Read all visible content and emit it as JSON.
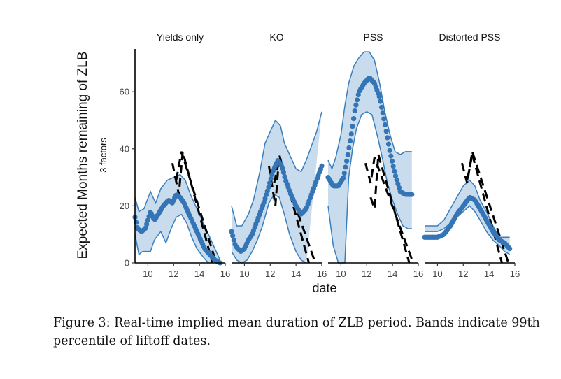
{
  "caption": "Figure 3: Real-time implied mean duration of ZLB period. Bands indicate 99th percentile of liftoff dates.",
  "colors": {
    "band": "#c9dced",
    "band_edge": "#3a7fbd",
    "point": "#3575b5",
    "dashed": "#000000"
  },
  "chart_data": {
    "type": "scatter",
    "xlabel": "date",
    "ylabel": "Expected Months remaining of ZLB",
    "strip_label": "3 factors",
    "xlim": [
      9,
      16
    ],
    "ylim": [
      0,
      75
    ],
    "x_ticks": [
      10,
      12,
      14,
      16
    ],
    "y_ticks": [
      0,
      20,
      40,
      60
    ],
    "facets": [
      {
        "title": "Yields only",
        "mean": [
          [
            9.0,
            16
          ],
          [
            9.2,
            12
          ],
          [
            9.5,
            11
          ],
          [
            9.8,
            12
          ],
          [
            10.2,
            18
          ],
          [
            10.5,
            15
          ],
          [
            10.8,
            17
          ],
          [
            11.2,
            20
          ],
          [
            11.6,
            22
          ],
          [
            11.9,
            21
          ],
          [
            12.2,
            24
          ],
          [
            12.5,
            23
          ],
          [
            12.8,
            21
          ],
          [
            13.2,
            17
          ],
          [
            13.6,
            13
          ],
          [
            14.0,
            9
          ],
          [
            14.4,
            5
          ],
          [
            14.8,
            3
          ],
          [
            15.2,
            1
          ],
          [
            15.6,
            0
          ]
        ],
        "upper": [
          [
            9.0,
            23
          ],
          [
            9.3,
            18
          ],
          [
            9.7,
            19
          ],
          [
            10.2,
            25
          ],
          [
            10.6,
            21
          ],
          [
            11.0,
            26
          ],
          [
            11.5,
            29
          ],
          [
            12.0,
            30
          ],
          [
            12.5,
            31
          ],
          [
            12.9,
            29
          ],
          [
            13.3,
            24
          ],
          [
            13.8,
            19
          ],
          [
            14.3,
            14
          ],
          [
            14.8,
            9
          ],
          [
            15.2,
            5
          ],
          [
            15.6,
            1
          ]
        ],
        "lower": [
          [
            9.0,
            10
          ],
          [
            9.3,
            3
          ],
          [
            9.6,
            4
          ],
          [
            10.2,
            4
          ],
          [
            10.5,
            8
          ],
          [
            11.0,
            11
          ],
          [
            11.4,
            7
          ],
          [
            11.8,
            12
          ],
          [
            12.2,
            16
          ],
          [
            12.6,
            17
          ],
          [
            13.0,
            14
          ],
          [
            13.4,
            9
          ],
          [
            13.8,
            5
          ],
          [
            14.3,
            2
          ],
          [
            14.7,
            0
          ]
        ],
        "dashed": [
          [
            [
              11.9,
              35
            ],
            [
              12.4,
              24
            ],
            [
              12.7,
              39
            ],
            [
              15.0,
              0
            ]
          ],
          [
            [
              12.2,
              29
            ],
            [
              12.6,
              39
            ],
            [
              15.3,
              0
            ]
          ]
        ]
      },
      {
        "title": "KO",
        "mean": [
          [
            9.0,
            11
          ],
          [
            9.3,
            6
          ],
          [
            9.7,
            4
          ],
          [
            10.0,
            5
          ],
          [
            10.3,
            8
          ],
          [
            10.6,
            10
          ],
          [
            11.0,
            15
          ],
          [
            11.5,
            21
          ],
          [
            11.9,
            27
          ],
          [
            12.2,
            32
          ],
          [
            12.6,
            36
          ],
          [
            12.9,
            34
          ],
          [
            13.2,
            29
          ],
          [
            13.6,
            24
          ],
          [
            14.0,
            20
          ],
          [
            14.4,
            17
          ],
          [
            14.8,
            19
          ],
          [
            15.2,
            24
          ],
          [
            15.6,
            29
          ],
          [
            16.0,
            34
          ]
        ],
        "upper": [
          [
            9.0,
            20
          ],
          [
            9.4,
            13
          ],
          [
            9.8,
            13
          ],
          [
            10.3,
            17
          ],
          [
            10.7,
            22
          ],
          [
            11.2,
            32
          ],
          [
            11.6,
            42
          ],
          [
            12.0,
            46
          ],
          [
            12.4,
            50
          ],
          [
            12.8,
            48
          ],
          [
            13.1,
            42
          ],
          [
            13.5,
            38
          ],
          [
            14.0,
            33
          ],
          [
            14.4,
            32
          ],
          [
            14.8,
            36
          ],
          [
            15.2,
            41
          ],
          [
            15.6,
            46
          ],
          [
            16.0,
            53
          ]
        ],
        "lower": [
          [
            9.0,
            4
          ],
          [
            9.4,
            1
          ],
          [
            9.8,
            0
          ],
          [
            10.2,
            1
          ],
          [
            10.6,
            4
          ],
          [
            11.0,
            8
          ],
          [
            11.4,
            13
          ],
          [
            11.9,
            21
          ],
          [
            12.3,
            24
          ],
          [
            12.7,
            23
          ],
          [
            13.1,
            17
          ],
          [
            13.5,
            10
          ],
          [
            14.0,
            4
          ],
          [
            14.4,
            1
          ],
          [
            14.8,
            0
          ]
        ],
        "dashed": [
          [
            [
              11.9,
              34
            ],
            [
              12.4,
              20
            ],
            [
              12.7,
              38
            ],
            [
              15.0,
              0
            ]
          ],
          [
            [
              12.3,
              28
            ],
            [
              12.7,
              36
            ],
            [
              15.5,
              0
            ]
          ]
        ]
      },
      {
        "title": "PSS",
        "mean": [
          [
            9.0,
            30
          ],
          [
            9.4,
            27
          ],
          [
            9.8,
            27
          ],
          [
            10.2,
            30
          ],
          [
            10.5,
            37
          ],
          [
            10.8,
            45
          ],
          [
            11.1,
            54
          ],
          [
            11.4,
            60
          ],
          [
            11.8,
            63
          ],
          [
            12.2,
            65
          ],
          [
            12.6,
            63
          ],
          [
            13.0,
            58
          ],
          [
            13.4,
            49
          ],
          [
            13.8,
            39
          ],
          [
            14.2,
            31
          ],
          [
            14.6,
            25
          ],
          [
            15.0,
            24
          ],
          [
            15.5,
            24
          ]
        ],
        "upper": [
          [
            9.0,
            36
          ],
          [
            9.3,
            33
          ],
          [
            9.6,
            37
          ],
          [
            10.0,
            45
          ],
          [
            10.3,
            55
          ],
          [
            10.6,
            63
          ],
          [
            11.0,
            69
          ],
          [
            11.4,
            72
          ],
          [
            11.8,
            74
          ],
          [
            12.2,
            74
          ],
          [
            12.6,
            71
          ],
          [
            13.0,
            63
          ],
          [
            13.4,
            53
          ],
          [
            13.8,
            45
          ],
          [
            14.2,
            39
          ],
          [
            14.6,
            38
          ],
          [
            15.0,
            39
          ],
          [
            15.5,
            39
          ]
        ],
        "lower": [
          [
            9.0,
            20
          ],
          [
            9.4,
            6
          ],
          [
            9.8,
            0
          ],
          [
            10.3,
            0
          ],
          [
            10.6,
            30
          ],
          [
            10.9,
            40
          ],
          [
            11.2,
            47
          ],
          [
            11.6,
            52
          ],
          [
            12.0,
            53
          ],
          [
            12.4,
            52
          ],
          [
            12.8,
            45
          ],
          [
            13.2,
            37
          ],
          [
            13.6,
            28
          ],
          [
            14.0,
            22
          ],
          [
            14.4,
            17
          ],
          [
            14.8,
            13
          ],
          [
            15.2,
            12
          ],
          [
            15.5,
            12
          ]
        ],
        "dashed": [
          [
            [
              12.3,
              23
            ],
            [
              12.6,
              19
            ],
            [
              12.9,
              38
            ],
            [
              15.3,
              0
            ]
          ],
          [
            [
              11.9,
              35
            ],
            [
              12.3,
              28
            ],
            [
              12.6,
              37
            ],
            [
              15.6,
              0
            ]
          ]
        ]
      },
      {
        "title": "Distorted PSS",
        "mean": [
          [
            9.0,
            9
          ],
          [
            9.5,
            9
          ],
          [
            10.0,
            9
          ],
          [
            10.5,
            10
          ],
          [
            11.0,
            13
          ],
          [
            11.5,
            17
          ],
          [
            12.0,
            20
          ],
          [
            12.5,
            23
          ],
          [
            12.9,
            22
          ],
          [
            13.3,
            19
          ],
          [
            13.8,
            15
          ],
          [
            14.3,
            11
          ],
          [
            14.8,
            8
          ],
          [
            15.2,
            7
          ],
          [
            15.6,
            5
          ]
        ],
        "upper": [
          [
            9.0,
            13
          ],
          [
            9.5,
            13
          ],
          [
            10.0,
            13
          ],
          [
            10.5,
            15
          ],
          [
            11.0,
            19
          ],
          [
            11.5,
            23
          ],
          [
            12.0,
            27
          ],
          [
            12.5,
            29
          ],
          [
            12.9,
            27
          ],
          [
            13.3,
            22
          ],
          [
            13.8,
            18
          ],
          [
            14.3,
            13
          ],
          [
            14.8,
            9
          ],
          [
            15.2,
            9
          ],
          [
            15.6,
            9
          ]
        ],
        "lower": [
          [
            9.0,
            11
          ],
          [
            9.5,
            11
          ],
          [
            10.0,
            11
          ],
          [
            10.5,
            12
          ],
          [
            11.0,
            14
          ],
          [
            11.5,
            16
          ],
          [
            12.0,
            18
          ],
          [
            12.5,
            20
          ],
          [
            12.9,
            18
          ],
          [
            13.3,
            15
          ],
          [
            13.8,
            11
          ],
          [
            14.3,
            8
          ],
          [
            14.8,
            6
          ],
          [
            15.2,
            4
          ],
          [
            15.6,
            3
          ]
        ],
        "dashed": [
          [
            [
              11.9,
              35
            ],
            [
              12.3,
              28
            ],
            [
              12.7,
              39
            ],
            [
              15.5,
              0
            ]
          ],
          [
            [
              12.3,
              29
            ],
            [
              12.7,
              38
            ],
            [
              15.0,
              0
            ]
          ]
        ]
      }
    ]
  }
}
